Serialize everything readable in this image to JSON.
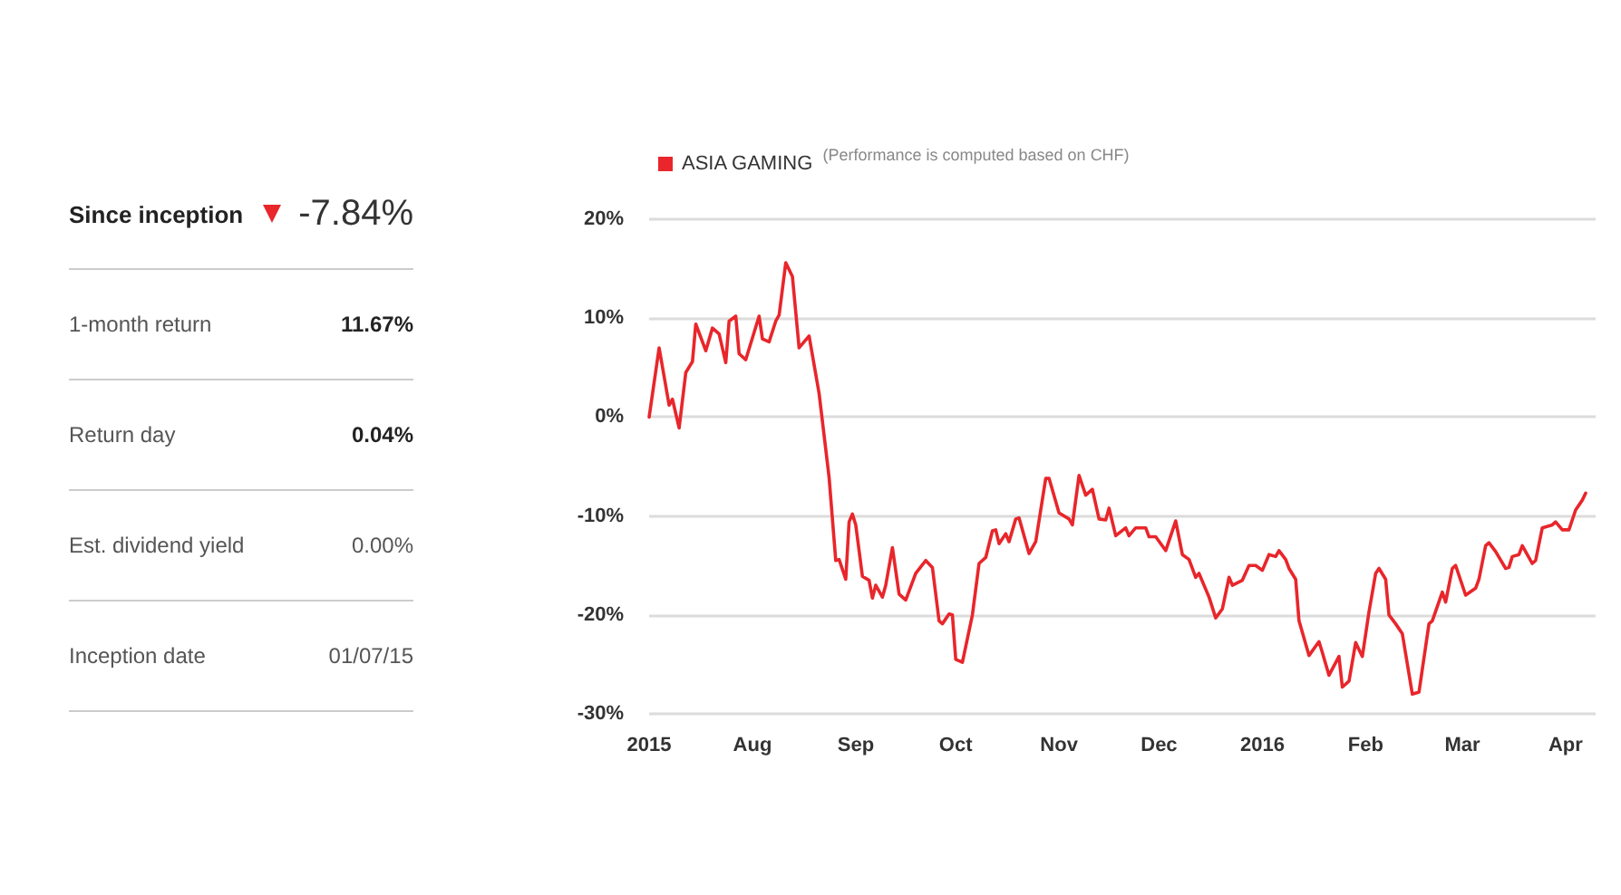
{
  "chart_data": [
    {
      "type": "other",
      "annotations": [
        "Since inception",
        "-7.84%",
        "1-month return",
        "11.67%",
        "Return day",
        "0.04%",
        "Est. dividend yield",
        "0.00%",
        "Inception date",
        "01/07/15"
      ]
    },
    {
      "type": "line",
      "legend": "top left",
      "grid": "y",
      "marker": "none",
      "line_style": "solid",
      "annotations": [
        "(Performance is computed based on CHF)"
      ],
      "xlim": [
        "2015-07-01",
        "2016-04-10"
      ],
      "xticks": [
        {
          "value": "2015-07-01",
          "label": "2015"
        },
        {
          "value": "2015-08-01",
          "label": "Aug"
        },
        {
          "value": "2015-09-01",
          "label": "Sep"
        },
        {
          "value": "2015-10-01",
          "label": "Oct"
        },
        {
          "value": "2015-11-01",
          "label": "Nov"
        },
        {
          "value": "2015-12-01",
          "label": "Dec"
        },
        {
          "value": "2016-01-01",
          "label": "2016"
        },
        {
          "value": "2016-02-01",
          "label": "Feb"
        },
        {
          "value": "2016-03-01",
          "label": "Mar"
        },
        {
          "value": "2016-04-01",
          "label": "Apr"
        }
      ],
      "ylim": [
        -30,
        20
      ],
      "yticks": [
        {
          "value": -30,
          "label": "-30%"
        },
        {
          "value": -20,
          "label": "-20%"
        },
        {
          "value": -10,
          "label": "-10%"
        },
        {
          "value": 0,
          "label": "0%"
        },
        {
          "value": 10,
          "label": "10%"
        },
        {
          "value": 20,
          "label": "20%"
        }
      ],
      "series": [
        {
          "name": "ASIA GAMING",
          "color": "#e8262b",
          "x": [
            "2015-07-01",
            "2015-07-04",
            "2015-07-07",
            "2015-07-08",
            "2015-07-10",
            "2015-07-12",
            "2015-07-14",
            "2015-07-15",
            "2015-07-18",
            "2015-07-20",
            "2015-07-22",
            "2015-07-24",
            "2015-07-25",
            "2015-07-27",
            "2015-07-28",
            "2015-07-30",
            "2015-08-03",
            "2015-08-04",
            "2015-08-06",
            "2015-08-08",
            "2015-08-09",
            "2015-08-11",
            "2015-08-13",
            "2015-08-15",
            "2015-08-18",
            "2015-08-21",
            "2015-08-24",
            "2015-08-26",
            "2015-08-27",
            "2015-08-29",
            "2015-08-30",
            "2015-08-31",
            "2015-09-01",
            "2015-09-03",
            "2015-09-05",
            "2015-09-06",
            "2015-09-07",
            "2015-09-09",
            "2015-09-10",
            "2015-09-12",
            "2015-09-14",
            "2015-09-16",
            "2015-09-19",
            "2015-09-22",
            "2015-09-24",
            "2015-09-26",
            "2015-09-27",
            "2015-09-29",
            "2015-09-30",
            "2015-10-01",
            "2015-10-03",
            "2015-10-06",
            "2015-10-08",
            "2015-10-10",
            "2015-10-12",
            "2015-10-13",
            "2015-10-14",
            "2015-10-16",
            "2015-10-17",
            "2015-10-19",
            "2015-10-20",
            "2015-10-23",
            "2015-10-25",
            "2015-10-28",
            "2015-10-29",
            "2015-11-01",
            "2015-11-04",
            "2015-11-05",
            "2015-11-07",
            "2015-11-09",
            "2015-11-11",
            "2015-11-13",
            "2015-11-15",
            "2015-11-16",
            "2015-11-18",
            "2015-11-21",
            "2015-11-22",
            "2015-11-24",
            "2015-11-27",
            "2015-11-28",
            "2015-11-30",
            "2015-12-03",
            "2015-12-06",
            "2015-12-08",
            "2015-12-10",
            "2015-12-12",
            "2015-12-13",
            "2015-12-16",
            "2015-12-18",
            "2015-12-20",
            "2015-12-22",
            "2015-12-23",
            "2015-12-26",
            "2015-12-28",
            "2015-12-30",
            "2016-01-01",
            "2016-01-03",
            "2016-01-05",
            "2016-01-06",
            "2016-01-08",
            "2016-01-09",
            "2016-01-11",
            "2016-01-12",
            "2016-01-15",
            "2016-01-18",
            "2016-01-19",
            "2016-01-21",
            "2016-01-24",
            "2016-01-25",
            "2016-01-27",
            "2016-01-29",
            "2016-01-31",
            "2016-02-02",
            "2016-02-04",
            "2016-02-05",
            "2016-02-07",
            "2016-02-08",
            "2016-02-10",
            "2016-02-12",
            "2016-02-15",
            "2016-02-17",
            "2016-02-20",
            "2016-02-21",
            "2016-02-24",
            "2016-02-25",
            "2016-02-27",
            "2016-02-28",
            "2016-03-02",
            "2016-03-05",
            "2016-03-06",
            "2016-03-08",
            "2016-03-09",
            "2016-03-11",
            "2016-03-14",
            "2016-03-15",
            "2016-03-16",
            "2016-03-18",
            "2016-03-19",
            "2016-03-22",
            "2016-03-23",
            "2016-03-25",
            "2016-03-28",
            "2016-03-29",
            "2016-03-31",
            "2016-04-02",
            "2016-04-04",
            "2016-04-06",
            "2016-04-07"
          ],
          "values": [
            0,
            7.0,
            1.2,
            1.8,
            -1.1,
            4.5,
            5.6,
            9.4,
            6.7,
            9.0,
            8.4,
            5.5,
            9.7,
            10.2,
            6.4,
            5.8,
            10.2,
            7.9,
            7.6,
            9.7,
            10.3,
            15.6,
            14.2,
            7.0,
            8.2,
            2.4,
            -6.1,
            -14.5,
            -14.4,
            -16.4,
            -10.6,
            -9.8,
            -10.9,
            -16.1,
            -16.5,
            -18.3,
            -17.0,
            -18.2,
            -17.0,
            -13.2,
            -17.9,
            -18.5,
            -15.8,
            -14.5,
            -15.2,
            -20.6,
            -20.9,
            -19.9,
            -20.0,
            -24.5,
            -24.8,
            -20.0,
            -14.8,
            -14.2,
            -11.5,
            -11.4,
            -12.8,
            -11.8,
            -12.6,
            -10.3,
            -10.2,
            -13.8,
            -12.6,
            -6.2,
            -6.2,
            -9.7,
            -10.3,
            -10.9,
            -5.9,
            -7.9,
            -7.3,
            -10.3,
            -10.4,
            -9.2,
            -12.0,
            -11.2,
            -12.0,
            -11.2,
            -11.2,
            -12.1,
            -12.1,
            -13.5,
            -10.5,
            -13.9,
            -14.4,
            -16.2,
            -15.8,
            -18.2,
            -20.3,
            -19.4,
            -16.2,
            -17.0,
            -16.5,
            -15.0,
            -15.0,
            -15.5,
            -13.9,
            -14.1,
            -13.5,
            -14.4,
            -15.3,
            -16.4,
            -20.6,
            -24.1,
            -22.7,
            -23.8,
            -26.1,
            -24.2,
            -27.3,
            -26.7,
            -22.8,
            -24.2,
            -19.7,
            -15.8,
            -15.3,
            -16.4,
            -20.0,
            -20.9,
            -21.9,
            -28.0,
            -27.8,
            -20.9,
            -20.6,
            -17.7,
            -18.7,
            -15.3,
            -15.0,
            -18.0,
            -17.3,
            -16.4,
            -13.0,
            -12.7,
            -13.6,
            -15.3,
            -15.2,
            -14.1,
            -13.9,
            -13.0,
            -14.8,
            -14.5,
            -11.2,
            -10.9,
            -10.6,
            -11.4,
            -11.4,
            -9.4,
            -8.4,
            -7.7
          ]
        }
      ]
    }
  ]
}
